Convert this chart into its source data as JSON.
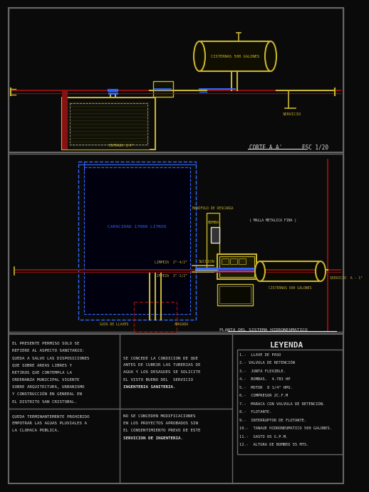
{
  "bg_color": "#0a0a0a",
  "gold": "#c8b432",
  "blue": "#3366ff",
  "dark_blue": "#2244bb",
  "red": "#881111",
  "white": "#e0e0e0",
  "gray": "#666666",
  "legend_title": "LEYENDA",
  "legend_items": [
    "1.-  LLAVE DE PASO",
    "2.- VALVULA DE RETENCIÓN",
    "3.-  JUNTA FLEXIBLE.",
    "4.-  BOMBAS.  4.783 HP",
    "5.-  MOTOR  8 1/4\" HPO.",
    "6.-  COMPRESOR 2C.F.M",
    "7.-  MARACA CON VALVULA DE RETENCIÓN.",
    "8.-  FLOTANTE.",
    "9.-  INTERRUPTOR DE FLOTANTE.",
    "10.-  TANAUE HIDRONEUMATICO 500 GALONES.",
    "11.-  GASTO 65 G.P.M.",
    "12.-  ALTURA DE BOMBEO 55 MTS."
  ],
  "text_panel1": [
    "EL PRESENTE PERMISO SOLO SE",
    "REFIERE AL ASPECTO SANITARIO:",
    "QUEDA A SALVO LAS DISPOSICIONES",
    "QUE SOBRE AREAS LIBRES Y",
    "RETIROS QUE CONTEMPLA LA",
    "ORDENANZA MUNICIPAL VIGENTE",
    "SOBRE ARQUITECTURA, URBANISMO",
    "Y CONSTRUCCIÓN EN GENERAL EN",
    "EL DISTRITO SAN CRISTOBAL."
  ],
  "text_panel2a": [
    "SE CONCEDE LA CONDICION DE QUE",
    "ANTES DE CUBRIR LAS TUBERIAS DE",
    "AGUA Y LOS DESAGUES SE SOLICITE",
    "EL VISTO BUENO DEL  SERVICIO"
  ],
  "text_panel2b": "INGENTERIA SANITERIA.",
  "text_panel3": [
    "QUEDA TERMINANTEMENTE PROHIBIDO",
    "EMPOTRAR LAS AGUAS PLUVIALES A",
    "LA CLOHACA PÚBLICA."
  ],
  "text_panel4a": [
    "NO SE CONCEDEN MODIFICACIONES",
    "EN LOS PROYECTOS APROBADOS SIN",
    "EL CONSENTIMIENTO PREVO DE ESTE"
  ],
  "text_panel4b": "SERVICION DE INGENTERIA.",
  "corte_text": "CORTE A A'      ESC 1/20",
  "planta_text": "PLANTA DEL SISTEMA HIDRONEUMATICO",
  "tank_label": "CISTERNAS 500 GALONES",
  "capacidad_text": "CAPACIDAD 17000 LITROS",
  "servicio_text": "SERVICIO",
  "bomba_text": "BOMBA",
  "succion_text": "SUCCION",
  "manifold_text": "MANIFOLD DE DESCARGA",
  "bomba2_text": "BOMBA",
  "malla_text": "( MALLA METALICA FINA )",
  "limpeza1": "LIMPEZA  2\"-4/2\"",
  "limpeza2": "LIMPEZA  2\"-1/2\"",
  "guia_text": "GUIA DE LLAVES",
  "apagada_text": "APAGADA",
  "servicio_a": "SERVICIO  A - 1\"",
  "entrada_text": "ENTRADA 3/4\"",
  "servicio_right": "SERVICIO"
}
